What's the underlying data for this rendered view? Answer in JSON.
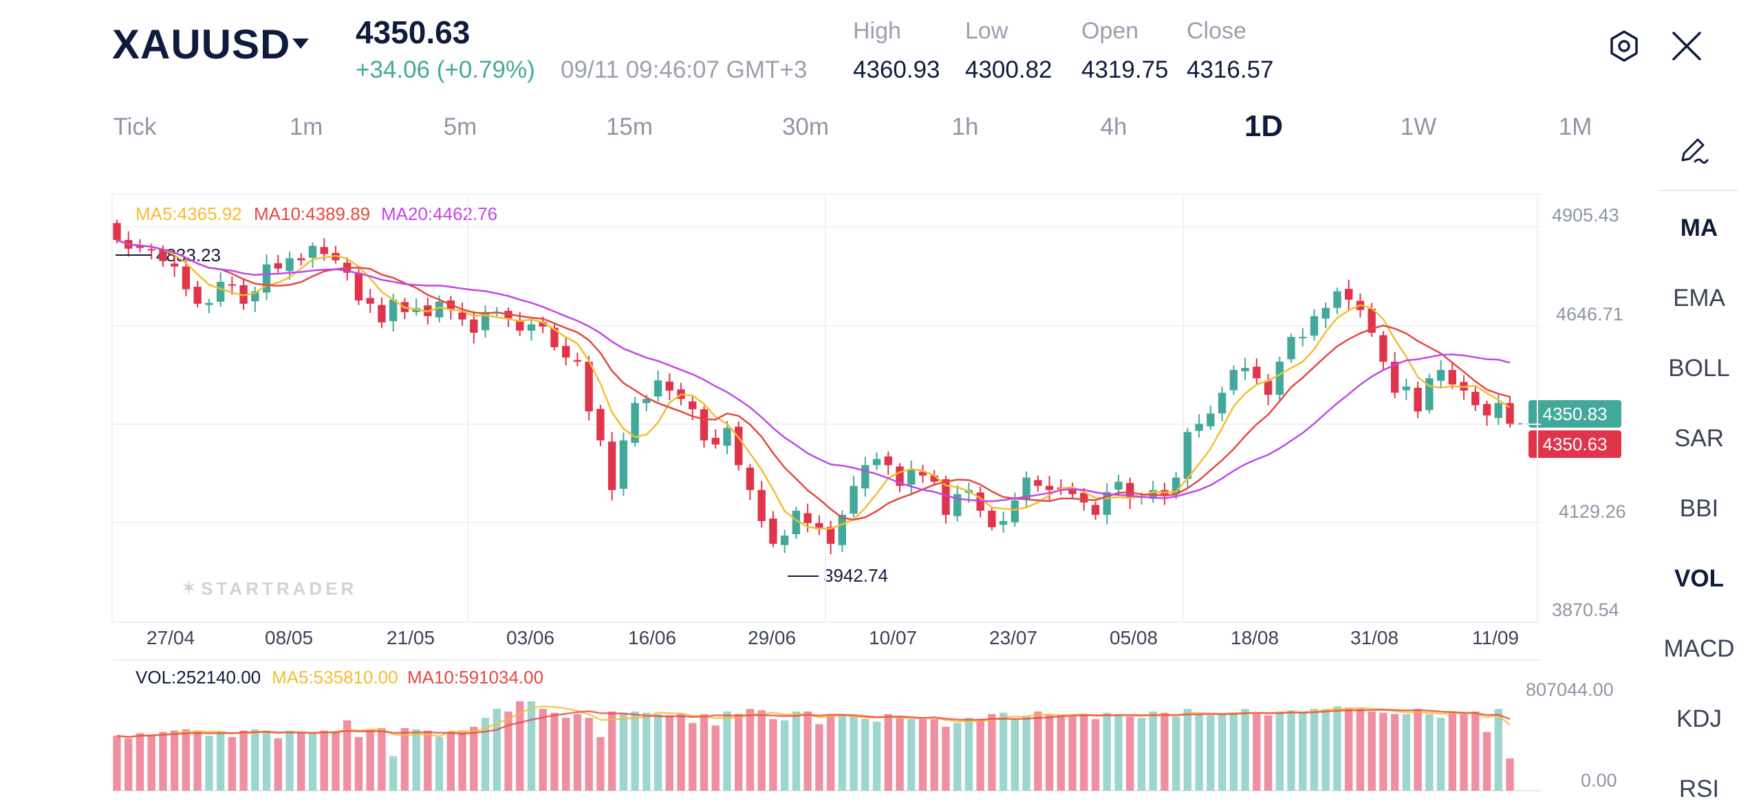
{
  "header": {
    "symbol": "XAUUSD",
    "price": "4350.63",
    "change": "+34.06 (+0.79%)",
    "timestamp": "09/11 09:46:07 GMT+3",
    "stats": [
      {
        "label": "High",
        "value": "4360.93"
      },
      {
        "label": "Low",
        "value": "4300.82"
      },
      {
        "label": "Open",
        "value": "4319.75"
      },
      {
        "label": "Close",
        "value": "4316.57"
      }
    ]
  },
  "timeframes": [
    "Tick",
    "1m",
    "5m",
    "15m",
    "30m",
    "1h",
    "4h",
    "1D",
    "1W",
    "1M"
  ],
  "active_timeframe": "1D",
  "indicators": [
    "MA",
    "EMA",
    "BOLL",
    "SAR",
    "BBI",
    "VOL",
    "MACD",
    "KDJ",
    "RSI"
  ],
  "active_indicators": [
    "MA",
    "VOL"
  ],
  "ma_legend": {
    "ma5": "MA5:4365.92",
    "ma10": "MA10:4389.89",
    "ma20": "MA20:4462.76"
  },
  "vol_legend": {
    "vol": "VOL:252140.00",
    "ma5": "MA5:535810.00",
    "ma10": "MA10:591034.00"
  },
  "price_axis": [
    "4905.43",
    "4646.71",
    "4129.26",
    "3870.54"
  ],
  "vol_axis": [
    "807044.00",
    "0.00"
  ],
  "current_price_tags": {
    "upper": "4350.83",
    "lower": "4350.63"
  },
  "high_marker": "4833.23",
  "low_marker": "3942.74",
  "watermark": "STARTRADER",
  "dates": [
    "27/04",
    "08/05",
    "21/05",
    "03/06",
    "16/06",
    "29/06",
    "10/07",
    "23/07",
    "05/08",
    "18/08",
    "31/08",
    "11/09"
  ],
  "colors": {
    "up": "#42a99a",
    "down": "#e0344b",
    "ma5": "#f5bd2f",
    "ma10": "#e5473f",
    "ma20": "#c146e8",
    "vol_up": "#9dd6cf",
    "vol_down": "#ee8fa2"
  },
  "chart_data": {
    "type": "candlestick",
    "y_range": [
      3870.54,
      4905.43
    ],
    "vol_range": [
      0,
      807044
    ],
    "closes": [
      4794,
      4773,
      4775,
      4769,
      4743,
      4730,
      4675,
      4640,
      4642,
      4693,
      4685,
      4640,
      4670,
      4735,
      4725,
      4750,
      4745,
      4780,
      4760,
      4745,
      4715,
      4648,
      4640,
      4595,
      4650,
      4620,
      4630,
      4610,
      4645,
      4625,
      4602,
      4570,
      4620,
      4620,
      4605,
      4575,
      4590,
      4585,
      4535,
      4510,
      4500,
      4380,
      4310,
      4190,
      4310,
      4400,
      4410,
      4455,
      4430,
      4410,
      4385,
      4310,
      4300,
      4340,
      4250,
      4190,
      4115,
      4060,
      4080,
      4140,
      4110,
      4095,
      4060,
      4130,
      4200,
      4250,
      4265,
      4250,
      4200,
      4240,
      4225,
      4210,
      4130,
      4180,
      4190,
      4140,
      4100,
      4115,
      4165,
      4220,
      4200,
      4190,
      4195,
      4180,
      4160,
      4130,
      4185,
      4210,
      4170,
      4175,
      4190,
      4175,
      4220,
      4330,
      4350,
      4375,
      4425,
      4480,
      4485,
      4460,
      4420,
      4500,
      4560,
      4560,
      4610,
      4630,
      4670,
      4650,
      4625,
      4570,
      4500,
      4425,
      4440,
      4380,
      4460,
      4480,
      4445,
      4430,
      4395,
      4370,
      4400,
      4350
    ],
    "volumes": [
      430000,
      410000,
      450000,
      440000,
      460000,
      470000,
      480000,
      470000,
      430000,
      460000,
      420000,
      470000,
      480000,
      470000,
      410000,
      470000,
      460000,
      450000,
      470000,
      460000,
      550000,
      420000,
      480000,
      490000,
      270000,
      490000,
      480000,
      470000,
      420000,
      460000,
      470000,
      500000,
      570000,
      640000,
      620000,
      700000,
      700000,
      640000,
      610000,
      570000,
      600000,
      570000,
      420000,
      620000,
      610000,
      620000,
      610000,
      600000,
      590000,
      600000,
      530000,
      600000,
      510000,
      620000,
      600000,
      640000,
      630000,
      560000,
      550000,
      620000,
      620000,
      520000,
      590000,
      600000,
      580000,
      560000,
      540000,
      600000,
      580000,
      560000,
      560000,
      560000,
      500000,
      530000,
      570000,
      560000,
      600000,
      610000,
      560000,
      580000,
      620000,
      600000,
      590000,
      580000,
      600000,
      560000,
      610000,
      600000,
      580000,
      570000,
      620000,
      610000,
      580000,
      640000,
      600000,
      590000,
      600000,
      610000,
      640000,
      600000,
      590000,
      620000,
      630000,
      620000,
      640000,
      640000,
      660000,
      650000,
      640000,
      620000,
      610000,
      600000,
      600000,
      640000,
      600000,
      570000,
      620000,
      600000,
      620000,
      460000,
      640000,
      252140
    ]
  }
}
